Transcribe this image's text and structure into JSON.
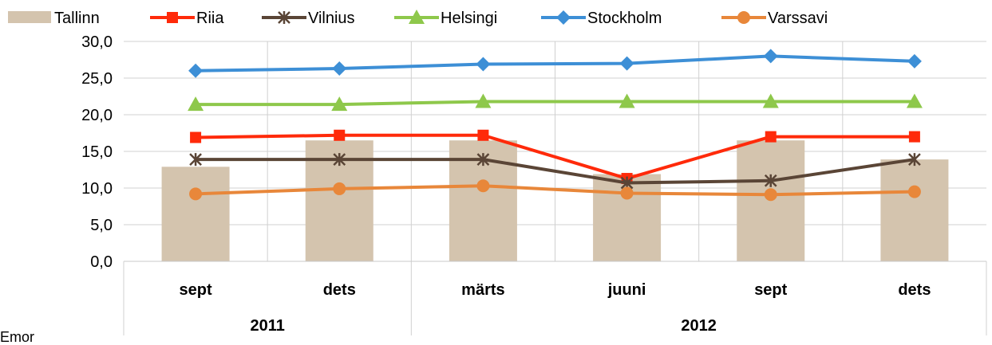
{
  "chart_data": {
    "type": "bar",
    "categories": [
      "sept",
      "dets",
      "märts",
      "juuni",
      "sept",
      "dets"
    ],
    "groups": [
      {
        "label": "2011",
        "span": 2
      },
      {
        "label": "2012",
        "span": 4
      }
    ],
    "ylim": [
      0,
      30
    ],
    "yticks": [
      "0,0",
      "5,0",
      "10,0",
      "15,0",
      "20,0",
      "25,0",
      "30,0"
    ],
    "ytick_values": [
      0,
      5,
      10,
      15,
      20,
      25,
      30
    ],
    "grid": true,
    "legend_position": "top",
    "series": [
      {
        "name": "Tallinn",
        "kind": "bar",
        "color": "#d4c4ae",
        "values": [
          12.9,
          16.5,
          16.5,
          11.9,
          16.5,
          13.9
        ]
      },
      {
        "name": "Riia",
        "kind": "line",
        "marker": "square",
        "color": "#ff2a0a",
        "values": [
          16.9,
          17.2,
          17.2,
          11.3,
          17.0,
          17.0
        ]
      },
      {
        "name": "Vilnius",
        "kind": "line",
        "marker": "star",
        "color": "#5a4536",
        "values": [
          13.9,
          13.9,
          13.9,
          10.7,
          11.0,
          13.9
        ]
      },
      {
        "name": "Helsingi",
        "kind": "line",
        "marker": "triangle",
        "color": "#8ec84b",
        "values": [
          21.4,
          21.4,
          21.8,
          21.8,
          21.8,
          21.8
        ]
      },
      {
        "name": "Stockholm",
        "kind": "line",
        "marker": "diamond",
        "color": "#3d8fd6",
        "values": [
          26.0,
          26.3,
          26.9,
          27.0,
          28.0,
          27.3
        ]
      },
      {
        "name": "Varssavi",
        "kind": "line",
        "marker": "circle",
        "color": "#e8873a",
        "values": [
          9.2,
          9.9,
          10.3,
          9.3,
          9.1,
          9.5
        ]
      }
    ]
  },
  "footnote": "Emor"
}
